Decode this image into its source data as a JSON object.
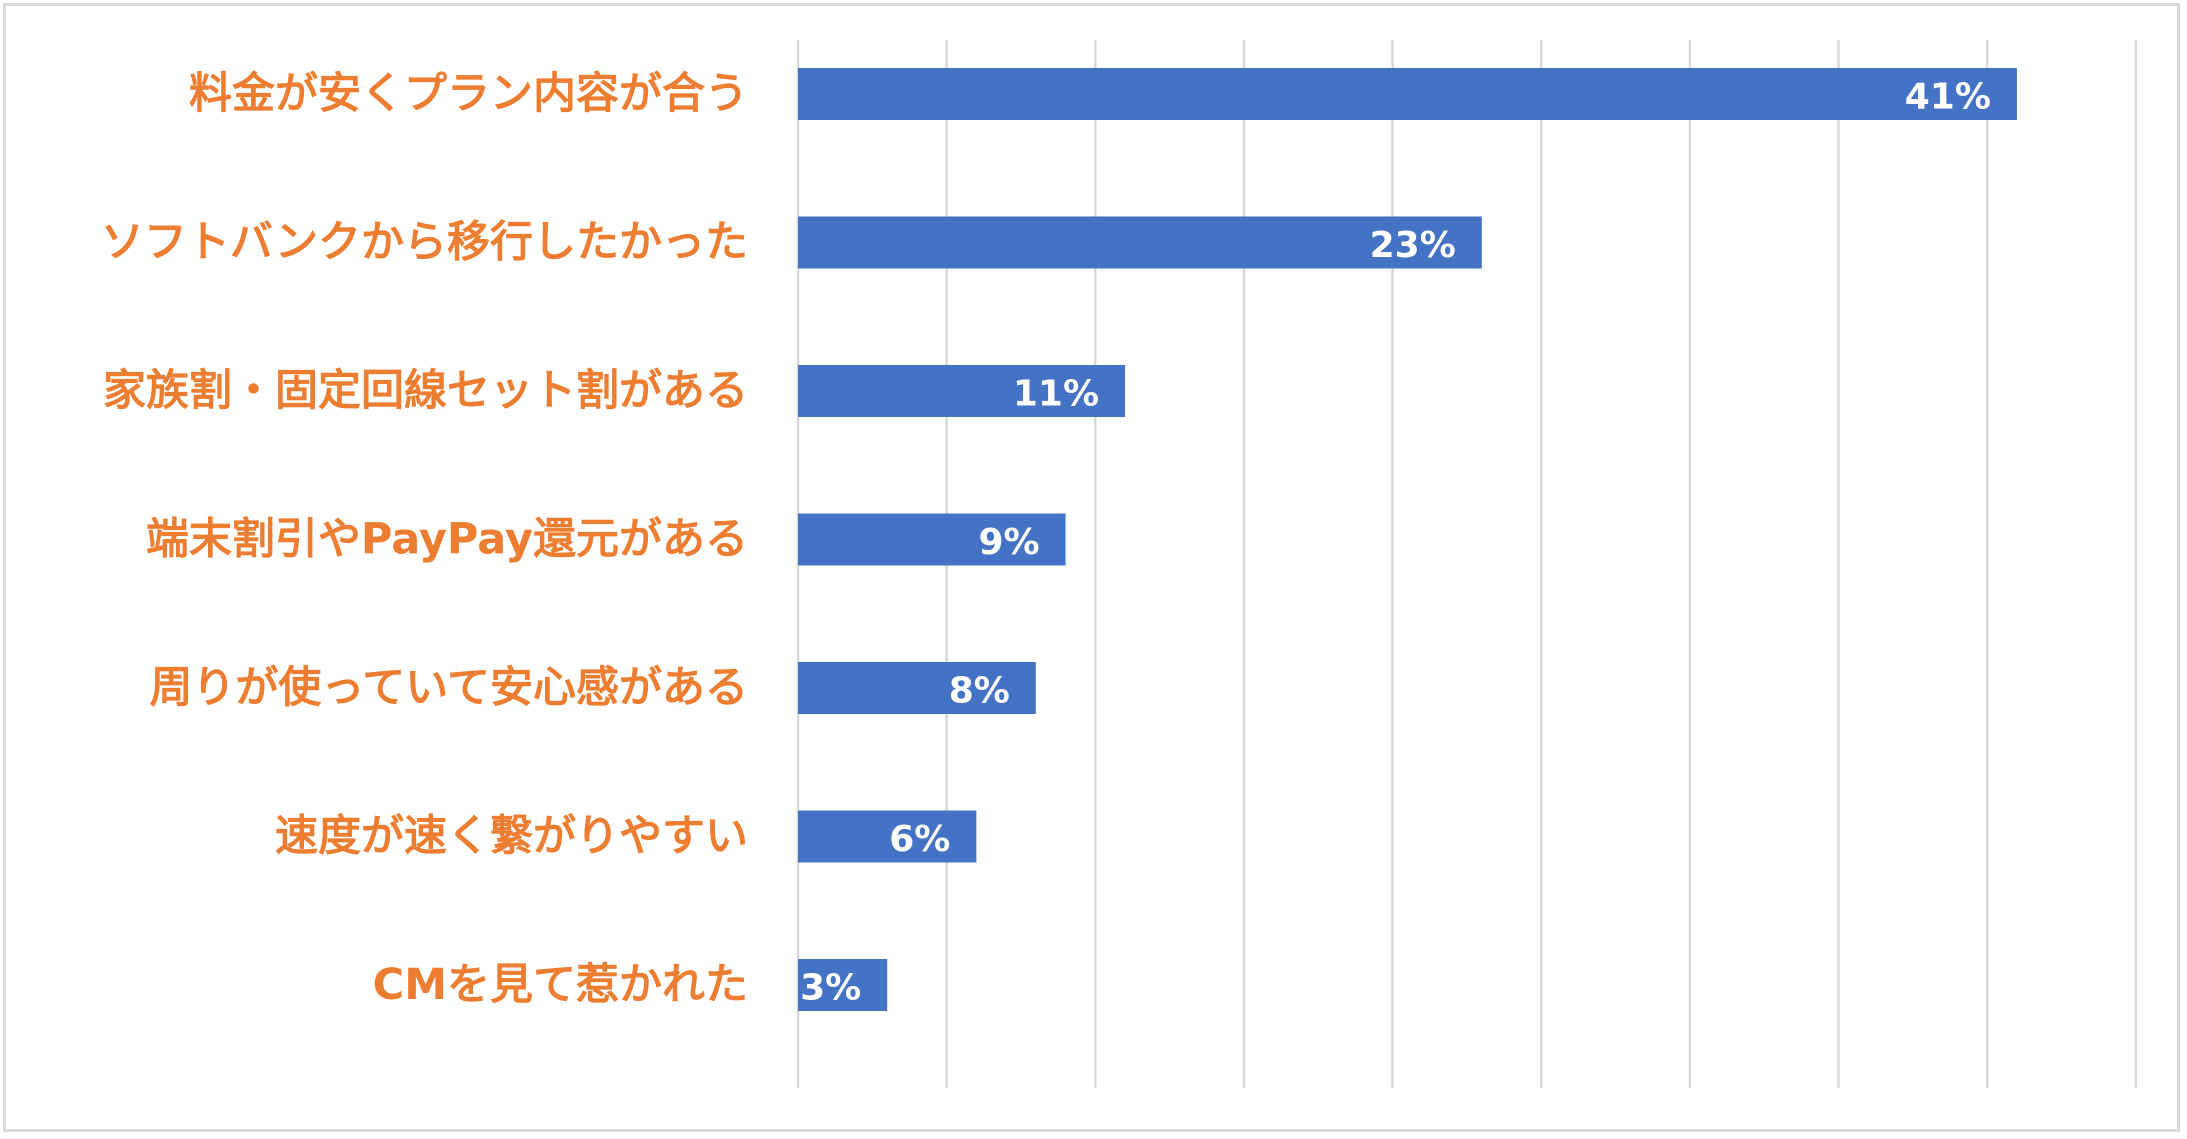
{
  "chart_data": {
    "type": "bar",
    "orientation": "horizontal",
    "categories": [
      "料金が安くプラン内容が合う",
      "ソフトバンクから移行したかった",
      "家族割・固定回線セット割がある",
      "端末割引やPayPay還元がある",
      "周りが使っていて安心感がある",
      "速度が速く繋がりやすい",
      "CMを見て惹かれた"
    ],
    "values": [
      41,
      23,
      11,
      9,
      8,
      6,
      3
    ],
    "data_labels": [
      "41%",
      "23%",
      "11%",
      "9%",
      "8%",
      "6%",
      "3%"
    ],
    "xlim": [
      0,
      45
    ],
    "grid_step": 5,
    "grid": true,
    "axis_tick_labels_shown": false,
    "legend": "none",
    "colors": {
      "bar": "#4472C4",
      "category_label": "#ED7D31",
      "data_label": "#FFFFFF",
      "gridline": "#D9D9D9",
      "frame": "#D9D9D9"
    }
  }
}
